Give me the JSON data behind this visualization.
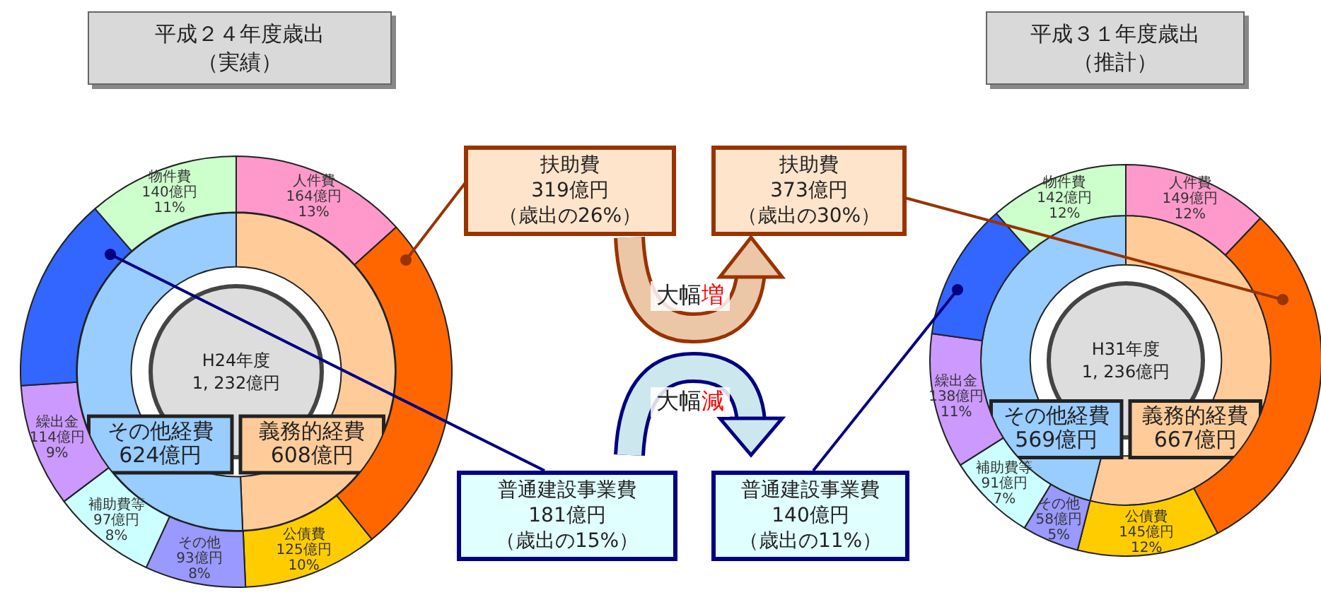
{
  "chart_data": [
    {
      "type": "donut",
      "title": "平成２４年度歳出",
      "subtitle": "（実績）",
      "categories": [
        "人件費",
        null,
        "公債費",
        "その他",
        "補助費等",
        "繰出金",
        null,
        "物件費"
      ],
      "values": [
        164,
        319,
        125,
        93,
        97,
        114,
        181,
        140
      ],
      "colors": [
        "#ff99cc",
        "#ff6600",
        "#ffcc00",
        "#9999ff",
        "#ccffff",
        "#cc99ff",
        "#3366ff",
        "#ccffcc"
      ],
      "value_labels": [
        "164億円\n13%",
        null,
        "125億円\n10%",
        "93億円\n8%",
        "97億円\n8%",
        "114億円\n9%",
        null,
        "140億円\n11%"
      ],
      "annotations": [
        "扶助費",
        "319億円",
        "（歳出の26%）",
        "普通建設事業費",
        "181億円",
        "（歳出の15%）"
      ]
    },
    {
      "type": "donut",
      "categories": [
        "義務的経費",
        "その他経費"
      ],
      "values": [
        608,
        624
      ],
      "colors": [
        "#ffcc99",
        "#99ccff"
      ],
      "value_labels": [
        "608億円",
        "624億円"
      ],
      "annotations": [
        "H24年度\n1, 232億円"
      ]
    },
    {
      "type": "donut",
      "title": "平成３１年度歳出",
      "subtitle": "（推計）",
      "categories": [
        "人件費",
        null,
        "公債費",
        "その他",
        "補助費等",
        "繰出金",
        null,
        "物件費"
      ],
      "values": [
        149,
        373,
        145,
        58,
        91,
        138,
        140,
        142
      ],
      "colors": [
        "#ff99cc",
        "#ff6600",
        "#ffcc00",
        "#9999ff",
        "#ccffff",
        "#cc99ff",
        "#3366ff",
        "#ccffcc"
      ],
      "value_labels": [
        "149億円\n12%",
        null,
        "145億円\n12%",
        "58億円\n5%",
        "91億円\n7%",
        "138億円\n11%",
        null,
        "142億円\n12%"
      ],
      "annotations": [
        "扶助費",
        "373億円",
        "（歳出の30%）",
        "普通建設事業費",
        "140億円",
        "（歳出の11%）"
      ]
    },
    {
      "type": "donut",
      "categories": [
        "義務的経費",
        "その他経費"
      ],
      "values": [
        667,
        569
      ],
      "colors": [
        "#ffcc99",
        "#99ccff"
      ],
      "value_labels": [
        "667億円",
        "569億円"
      ],
      "annotations": [
        "H31年度\n1, 236億円"
      ]
    },
    {
      "type": "other",
      "annotations": [
        "大幅増",
        "大幅減"
      ]
    }
  ]
}
